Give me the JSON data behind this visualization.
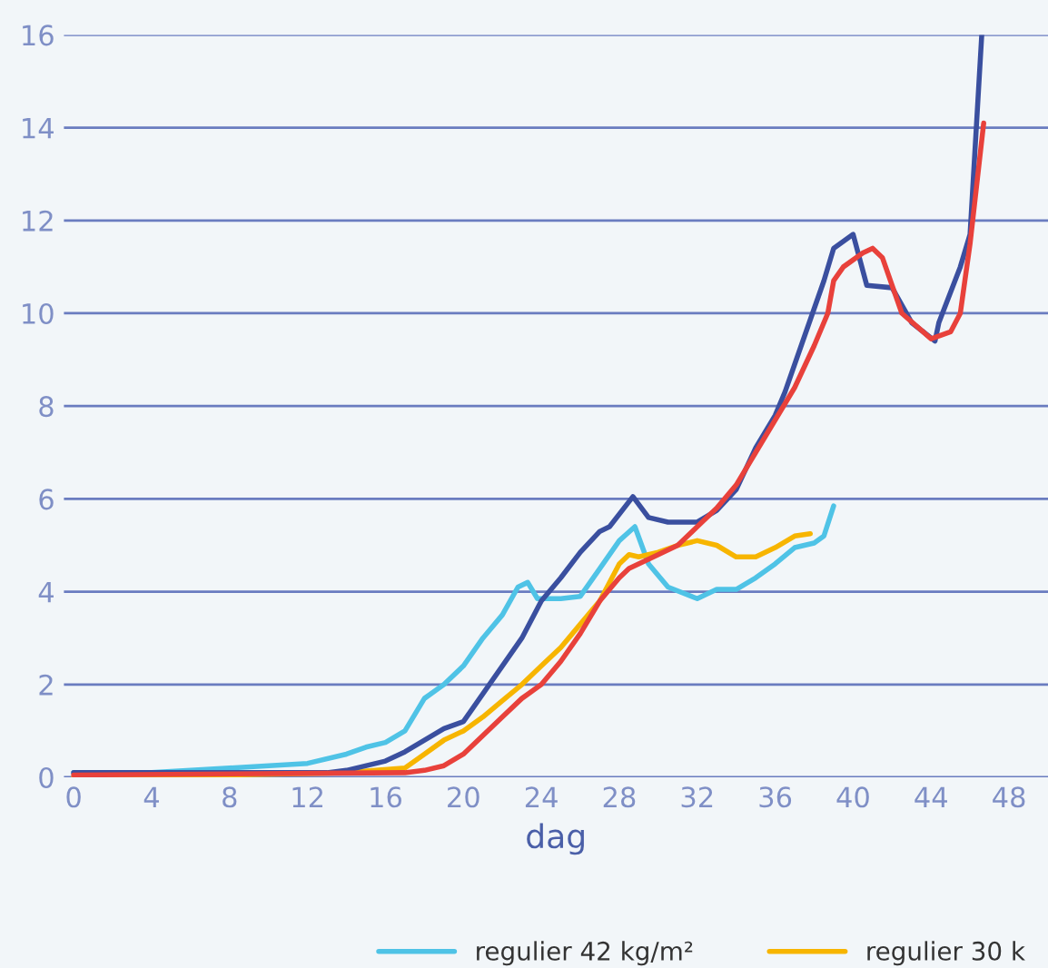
{
  "chart_data": {
    "type": "line",
    "xlabel": "dag",
    "xlim": [
      -0.5,
      50
    ],
    "ylim": [
      0,
      16
    ],
    "xticks": [
      0,
      4,
      8,
      12,
      16,
      20,
      24,
      28,
      32,
      36,
      40,
      44,
      48
    ],
    "yticks": [
      0,
      2,
      4,
      6,
      8,
      10,
      12,
      14,
      16
    ],
    "grid": "y",
    "legend": "bottom",
    "marker": "none",
    "line_style": "solid",
    "series": [
      {
        "name": "regulier 42 kg/m²",
        "color": "#4fc3e6",
        "x": [
          0,
          4,
          8,
          12,
          14,
          15,
          16,
          17,
          18,
          19,
          20,
          21,
          22,
          22.8,
          23.3,
          23.8,
          25,
          26,
          27,
          28,
          28.8,
          29.5,
          30.5,
          32,
          33,
          34,
          35,
          36,
          37,
          38,
          38.5,
          39
        ],
        "values": [
          0.1,
          0.1,
          0.2,
          0.3,
          0.5,
          0.65,
          0.75,
          1.0,
          1.7,
          2.0,
          2.4,
          3.0,
          3.5,
          4.1,
          4.2,
          3.85,
          3.85,
          3.9,
          4.5,
          5.1,
          5.4,
          4.6,
          4.1,
          3.85,
          4.05,
          4.05,
          4.3,
          4.6,
          4.95,
          5.05,
          5.2,
          5.85
        ]
      },
      {
        "name": "regulier 30 k",
        "color": "#f7b500",
        "x": [
          0,
          8,
          14,
          17,
          18,
          19,
          20,
          21,
          22,
          23,
          24,
          25,
          26,
          27,
          28,
          28.5,
          29,
          30,
          31,
          32,
          33,
          34,
          35,
          36,
          37,
          37.8
        ],
        "values": [
          0.0,
          0.05,
          0.1,
          0.2,
          0.5,
          0.8,
          1.0,
          1.3,
          1.65,
          2.0,
          2.4,
          2.8,
          3.3,
          3.8,
          4.6,
          4.8,
          4.75,
          4.85,
          5.0,
          5.1,
          5.0,
          4.75,
          4.75,
          4.95,
          5.2,
          5.25
        ]
      },
      {
        "color": "#3a4f9f",
        "x": [
          0,
          13,
          14,
          16,
          17,
          18,
          19,
          20,
          20.5,
          22,
          23,
          24,
          25,
          26,
          27,
          27.5,
          28.7,
          29.5,
          30.5,
          32,
          33,
          34,
          35,
          36,
          36.5,
          37.5,
          38.5,
          39,
          40,
          40.7,
          42,
          43,
          44.2,
          44.4,
          45.5,
          46,
          46.6
        ],
        "values": [
          0.1,
          0.1,
          0.15,
          0.35,
          0.55,
          0.8,
          1.05,
          1.2,
          1.5,
          2.4,
          3.0,
          3.8,
          4.3,
          4.85,
          5.3,
          5.4,
          6.05,
          5.6,
          5.5,
          5.5,
          5.75,
          6.2,
          7.1,
          7.8,
          8.3,
          9.5,
          10.7,
          11.4,
          11.7,
          10.6,
          10.55,
          9.8,
          9.4,
          9.8,
          11.0,
          11.7,
          16.0
        ]
      },
      {
        "color": "#e8413b",
        "x": [
          0,
          17,
          18,
          19,
          20,
          21,
          22,
          23,
          24,
          25,
          26,
          27,
          28,
          28.5,
          30,
          31,
          32,
          33,
          34,
          35,
          36,
          37,
          38,
          38.7,
          39,
          39.5,
          40.5,
          41,
          41.5,
          42.5,
          44,
          45,
          45.5,
          46,
          46.7
        ],
        "values": [
          0.05,
          0.1,
          0.15,
          0.25,
          0.5,
          0.9,
          1.3,
          1.7,
          2.0,
          2.5,
          3.1,
          3.8,
          4.3,
          4.5,
          4.8,
          5.0,
          5.4,
          5.8,
          6.3,
          7.0,
          7.7,
          8.4,
          9.3,
          10.0,
          10.7,
          11.0,
          11.3,
          11.4,
          11.2,
          10.0,
          9.45,
          9.6,
          10.0,
          11.5,
          14.1
        ]
      }
    ]
  }
}
